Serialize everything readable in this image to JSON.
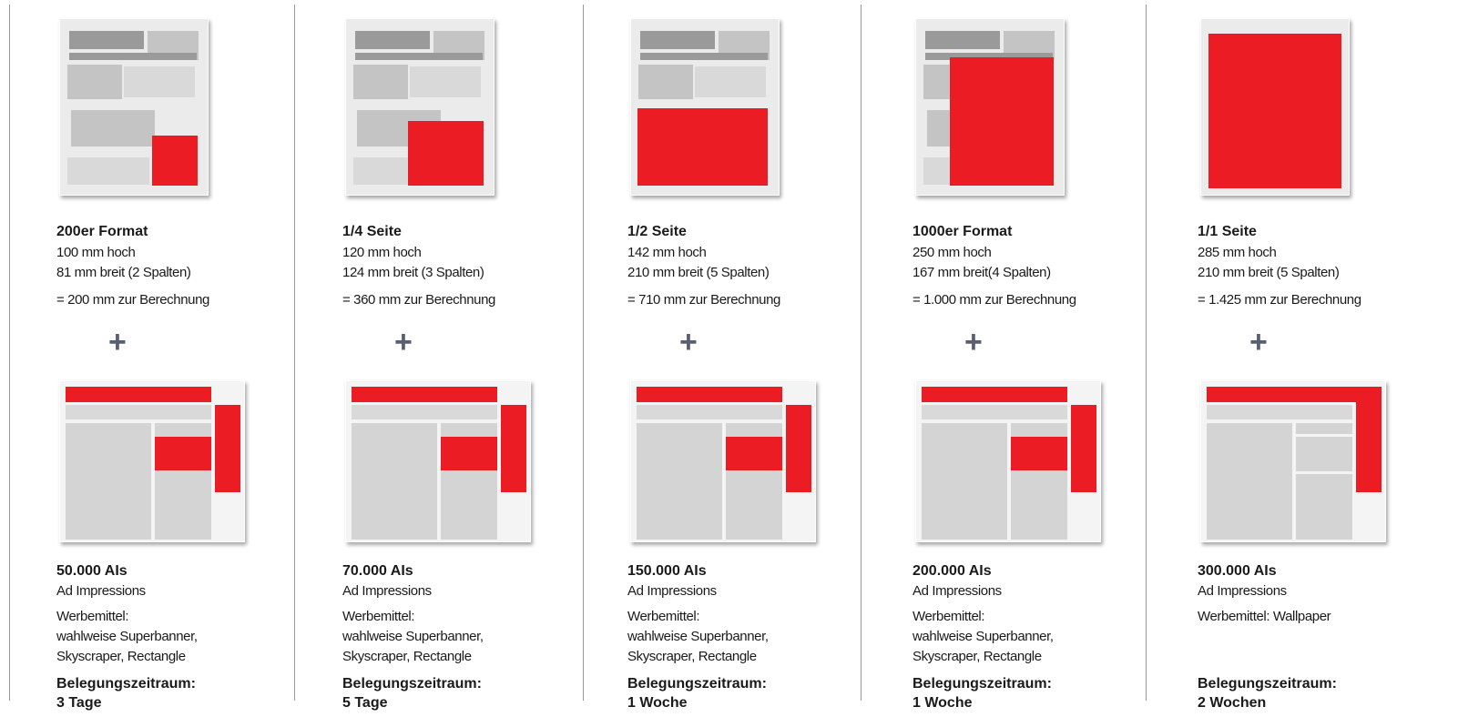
{
  "columns": [
    {
      "print": {
        "title": "200er Format",
        "lines": [
          "100 mm hoch",
          "81 mm breit (2 Spalten)"
        ],
        "calc": "= 200 mm zur Berechnung"
      },
      "online": {
        "title": "50.000 AIs",
        "subtitle": "Ad Impressions",
        "lines": [
          "Werbemittel:",
          "wahlweise Superbanner,",
          "Skyscraper, Rectangle"
        ],
        "period_label": "Belegungszeitraum:",
        "period": "3 Tage"
      }
    },
    {
      "print": {
        "title": "1/4 Seite",
        "lines": [
          "120 mm hoch",
          "124 mm breit (3 Spalten)"
        ],
        "calc": "= 360 mm zur Berechnung"
      },
      "online": {
        "title": "70.000 AIs",
        "subtitle": "Ad Impressions",
        "lines": [
          "Werbemittel:",
          "wahlweise Superbanner,",
          "Skyscraper, Rectangle"
        ],
        "period_label": "Belegungszeitraum:",
        "period": "5 Tage"
      }
    },
    {
      "print": {
        "title": "1/2 Seite",
        "lines": [
          "142 mm hoch",
          "210 mm breit (5 Spalten)"
        ],
        "calc": "= 710 mm zur Berechnung"
      },
      "online": {
        "title": "150.000 AIs",
        "subtitle": "Ad Impressions",
        "lines": [
          "Werbemittel:",
          "wahlweise Superbanner,",
          "Skyscraper, Rectangle"
        ],
        "period_label": "Belegungszeitraum:",
        "period": "1 Woche"
      }
    },
    {
      "print": {
        "title": "1000er Format",
        "lines": [
          "250 mm hoch",
          "167 mm breit(4 Spalten)"
        ],
        "calc": "= 1.000 mm zur Berechnung"
      },
      "online": {
        "title": "200.000 AIs",
        "subtitle": "Ad Impressions",
        "lines": [
          "Werbemittel:",
          "wahlweise Superbanner,",
          "Skyscraper, Rectangle"
        ],
        "period_label": "Belegungszeitraum:",
        "period": "1 Woche"
      }
    },
    {
      "print": {
        "title": "1/1 Seite",
        "lines": [
          "285 mm hoch",
          "210 mm breit (5 Spalten)"
        ],
        "calc": "= 1.425 mm zur Berechnung"
      },
      "online": {
        "title": "300.000 AIs",
        "subtitle": "Ad Impressions",
        "lines": [
          "Werbemittel: Wallpaper"
        ],
        "period_label": "Belegungszeitraum:",
        "period": "2 Wochen"
      }
    }
  ]
}
